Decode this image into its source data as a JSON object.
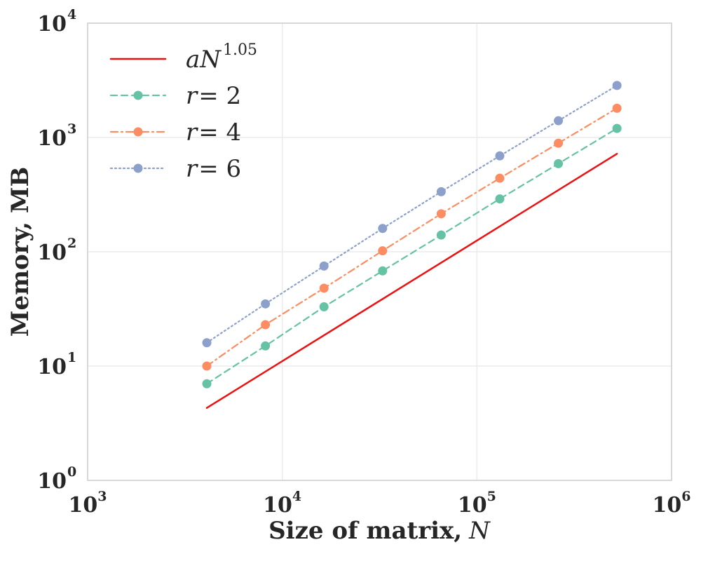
{
  "chart_data": {
    "type": "line",
    "title": "",
    "xlabel": "Size of matrix,",
    "xlabel_var": "N",
    "ylabel": "Memory, MB",
    "xscale": "log",
    "yscale": "log",
    "xlim": [
      1000,
      1000000
    ],
    "ylim": [
      1,
      10000
    ],
    "grid": true,
    "legend_position": "top-left",
    "x_ticks": [
      {
        "base": "10",
        "exp": "3"
      },
      {
        "base": "10",
        "exp": "4"
      },
      {
        "base": "10",
        "exp": "5"
      },
      {
        "base": "10",
        "exp": "6"
      }
    ],
    "y_ticks": [
      {
        "base": "10",
        "exp": "0"
      },
      {
        "base": "10",
        "exp": "1"
      },
      {
        "base": "10",
        "exp": "2"
      },
      {
        "base": "10",
        "exp": "3"
      },
      {
        "base": "10",
        "exp": "4"
      }
    ],
    "series": [
      {
        "name": "fit",
        "legend": {
          "var": "aN",
          "sup": "1.05"
        },
        "color": "#ee1111",
        "dash": "solid",
        "markers": false,
        "x": [
          4096,
          524288
        ],
        "y": [
          4.3,
          720
        ]
      },
      {
        "name": "r2",
        "legend": {
          "var": "r",
          "eq": "= 2"
        },
        "color": "#66c2a5",
        "dash": "dashed",
        "markers": true,
        "x": [
          4096,
          8192,
          16384,
          32768,
          65536,
          131072,
          262144,
          524288
        ],
        "y": [
          7,
          15,
          33,
          68,
          140,
          290,
          590,
          1200
        ]
      },
      {
        "name": "r4",
        "legend": {
          "var": "r",
          "eq": "= 4"
        },
        "color": "#fc8d62",
        "dash": "dashdot",
        "markers": true,
        "x": [
          4096,
          8192,
          16384,
          32768,
          65536,
          131072,
          262144,
          524288
        ],
        "y": [
          10,
          23,
          48,
          102,
          215,
          440,
          890,
          1800
        ]
      },
      {
        "name": "r6",
        "legend": {
          "var": "r",
          "eq": "= 6"
        },
        "color": "#8da0cb",
        "dash": "dotted",
        "markers": true,
        "x": [
          4096,
          8192,
          16384,
          32768,
          65536,
          131072,
          262144,
          524288
        ],
        "y": [
          16,
          35,
          75,
          160,
          335,
          690,
          1400,
          2850
        ]
      }
    ]
  }
}
